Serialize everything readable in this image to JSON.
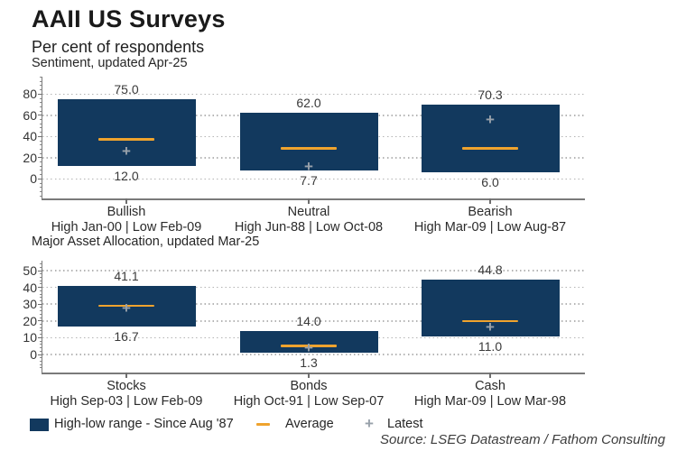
{
  "title": "AAII US Surveys",
  "subtitle": "Per cent of respondents",
  "source": "Source: LSEG Datastream / Fathom Consulting",
  "colors": {
    "bar": "#12395e",
    "average": "#efa32e",
    "latest": "#98a1aa",
    "grid": "#b4b4b4",
    "axis": "#7a7a7a"
  },
  "legend": {
    "range_label": "High-low range - Since Aug '87",
    "average_label": "Average",
    "latest_label": "Latest",
    "latest_marker": "+"
  },
  "chart_data": [
    {
      "type": "bar",
      "title": "Sentiment, updated Apr-25",
      "ylabel": "Per cent of respondents",
      "ylim": [
        0,
        80
      ],
      "yticks": [
        0,
        20,
        40,
        60,
        80
      ],
      "grid": true,
      "bars": [
        {
          "category": "Bullish",
          "sublabel": "High Jan-00 | Low Feb-09",
          "high": 75.0,
          "low": 12.0,
          "average": 37.5,
          "latest": 26
        },
        {
          "category": "Neutral",
          "sublabel": "High Jun-88 | Low Oct-08",
          "high": 62.0,
          "low": 7.7,
          "average": 29,
          "latest": 11.5
        },
        {
          "category": "Bearish",
          "sublabel": "High Mar-09 | Low Aug-87",
          "high": 70.3,
          "low": 6.0,
          "average": 29,
          "latest": 56
        }
      ]
    },
    {
      "type": "bar",
      "title": "Major Asset Allocation, updated Mar-25",
      "ylabel": "Per cent of respondents",
      "ylim": [
        0,
        50
      ],
      "yticks": [
        0,
        10,
        20,
        30,
        40,
        50
      ],
      "grid": true,
      "bars": [
        {
          "category": "Stocks",
          "sublabel": "High Sep-03 | Low Feb-09",
          "high": 41.1,
          "low": 16.7,
          "average": 29,
          "latest": 27.5
        },
        {
          "category": "Bonds",
          "sublabel": "High Oct-91 | Low Sep-07",
          "high": 14.0,
          "low": 1.3,
          "average": 5,
          "latest": 4
        },
        {
          "category": "Cash",
          "sublabel": "High Mar-09 | Low Mar-98",
          "high": 44.8,
          "low": 11.0,
          "average": 20,
          "latest": 16
        }
      ]
    }
  ]
}
